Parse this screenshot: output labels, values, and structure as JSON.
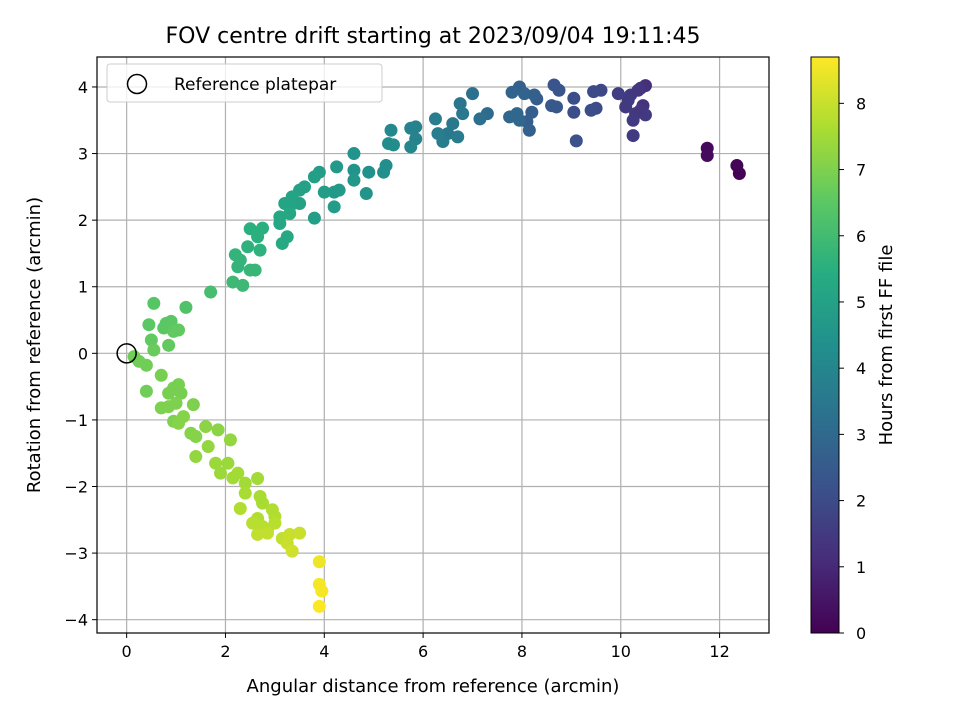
{
  "chart_data": {
    "type": "scatter",
    "title": "FOV centre drift starting at 2023/09/04 19:11:45",
    "xlabel": "Angular distance from reference (arcmin)",
    "ylabel": "Rotation from reference (arcmin)",
    "xlim": [
      -0.6,
      13.0
    ],
    "ylim": [
      -4.2,
      4.45
    ],
    "xticks": [
      0,
      2,
      4,
      6,
      8,
      10,
      12
    ],
    "yticks": [
      -4,
      -3,
      -2,
      -1,
      0,
      1,
      2,
      3,
      4
    ],
    "grid": true,
    "legend": {
      "position": "top-left",
      "label": "Reference platepar"
    },
    "colorbar": {
      "label": "Hours from first FF file",
      "range": [
        0,
        8.7
      ],
      "ticks": [
        0,
        1,
        2,
        3,
        4,
        5,
        6,
        7,
        8
      ],
      "colormap": "viridis"
    },
    "reference_point": {
      "x": 0,
      "y": 0
    },
    "points": [
      {
        "x": 12.4,
        "y": 2.7,
        "h": 0.05
      },
      {
        "x": 12.35,
        "y": 2.82,
        "h": 0.1
      },
      {
        "x": 11.75,
        "y": 3.08,
        "h": 0.2
      },
      {
        "x": 11.75,
        "y": 2.97,
        "h": 0.25
      },
      {
        "x": 10.5,
        "y": 4.02,
        "h": 1.2
      },
      {
        "x": 10.4,
        "y": 3.98,
        "h": 1.3
      },
      {
        "x": 10.45,
        "y": 3.72,
        "h": 1.3
      },
      {
        "x": 10.3,
        "y": 3.6,
        "h": 1.4
      },
      {
        "x": 10.2,
        "y": 3.88,
        "h": 1.5
      },
      {
        "x": 10.1,
        "y": 3.7,
        "h": 1.5
      },
      {
        "x": 10.25,
        "y": 3.5,
        "h": 1.5
      },
      {
        "x": 10.5,
        "y": 3.58,
        "h": 1.5
      },
      {
        "x": 10.25,
        "y": 3.27,
        "h": 1.5
      },
      {
        "x": 10.35,
        "y": 3.95,
        "h": 1.4
      },
      {
        "x": 10.15,
        "y": 3.8,
        "h": 1.5
      },
      {
        "x": 9.95,
        "y": 3.9,
        "h": 1.6
      },
      {
        "x": 10.4,
        "y": 3.65,
        "h": 1.4
      },
      {
        "x": 9.6,
        "y": 3.95,
        "h": 1.9
      },
      {
        "x": 9.45,
        "y": 3.93,
        "h": 2.0
      },
      {
        "x": 9.5,
        "y": 3.68,
        "h": 2.0
      },
      {
        "x": 9.4,
        "y": 3.65,
        "h": 2.1
      },
      {
        "x": 9.05,
        "y": 3.83,
        "h": 2.1
      },
      {
        "x": 9.05,
        "y": 3.62,
        "h": 2.1
      },
      {
        "x": 9.1,
        "y": 3.19,
        "h": 2.2
      },
      {
        "x": 8.65,
        "y": 4.03,
        "h": 2.3
      },
      {
        "x": 8.75,
        "y": 3.95,
        "h": 2.3
      },
      {
        "x": 8.6,
        "y": 3.72,
        "h": 2.4
      },
      {
        "x": 8.7,
        "y": 3.7,
        "h": 2.4
      },
      {
        "x": 8.3,
        "y": 3.82,
        "h": 2.5
      },
      {
        "x": 8.2,
        "y": 3.62,
        "h": 2.6
      },
      {
        "x": 8.1,
        "y": 3.48,
        "h": 2.6
      },
      {
        "x": 8.15,
        "y": 3.35,
        "h": 2.7
      },
      {
        "x": 7.95,
        "y": 4.0,
        "h": 2.7
      },
      {
        "x": 7.8,
        "y": 3.92,
        "h": 2.8
      },
      {
        "x": 8.05,
        "y": 3.9,
        "h": 2.8
      },
      {
        "x": 8.25,
        "y": 3.88,
        "h": 2.7
      },
      {
        "x": 7.9,
        "y": 3.6,
        "h": 2.9
      },
      {
        "x": 7.75,
        "y": 3.55,
        "h": 2.9
      },
      {
        "x": 7.95,
        "y": 3.5,
        "h": 2.9
      },
      {
        "x": 7.3,
        "y": 3.6,
        "h": 3.1
      },
      {
        "x": 7.15,
        "y": 3.52,
        "h": 3.2
      },
      {
        "x": 7.0,
        "y": 3.9,
        "h": 3.2
      },
      {
        "x": 6.75,
        "y": 3.75,
        "h": 3.4
      },
      {
        "x": 6.8,
        "y": 3.6,
        "h": 3.5
      },
      {
        "x": 6.6,
        "y": 3.45,
        "h": 3.5
      },
      {
        "x": 6.5,
        "y": 3.3,
        "h": 3.5
      },
      {
        "x": 6.7,
        "y": 3.25,
        "h": 3.6
      },
      {
        "x": 6.4,
        "y": 3.18,
        "h": 3.6
      },
      {
        "x": 6.3,
        "y": 3.3,
        "h": 3.7
      },
      {
        "x": 6.25,
        "y": 3.52,
        "h": 3.7
      },
      {
        "x": 5.85,
        "y": 3.4,
        "h": 3.9
      },
      {
        "x": 5.75,
        "y": 3.38,
        "h": 3.9
      },
      {
        "x": 5.85,
        "y": 3.22,
        "h": 3.9
      },
      {
        "x": 5.75,
        "y": 3.1,
        "h": 4.0
      },
      {
        "x": 5.35,
        "y": 3.35,
        "h": 4.1
      },
      {
        "x": 5.3,
        "y": 3.15,
        "h": 4.2
      },
      {
        "x": 5.4,
        "y": 3.13,
        "h": 4.2
      },
      {
        "x": 5.25,
        "y": 2.82,
        "h": 4.3
      },
      {
        "x": 5.2,
        "y": 2.72,
        "h": 4.3
      },
      {
        "x": 4.9,
        "y": 2.72,
        "h": 4.4
      },
      {
        "x": 4.85,
        "y": 2.4,
        "h": 4.5
      },
      {
        "x": 4.6,
        "y": 3.0,
        "h": 4.5
      },
      {
        "x": 4.6,
        "y": 2.75,
        "h": 4.5
      },
      {
        "x": 4.6,
        "y": 2.6,
        "h": 4.6
      },
      {
        "x": 4.25,
        "y": 2.8,
        "h": 4.7
      },
      {
        "x": 4.2,
        "y": 2.42,
        "h": 4.7
      },
      {
        "x": 4.3,
        "y": 2.45,
        "h": 4.7
      },
      {
        "x": 4.2,
        "y": 2.2,
        "h": 4.8
      },
      {
        "x": 4.0,
        "y": 2.42,
        "h": 4.8
      },
      {
        "x": 3.9,
        "y": 2.72,
        "h": 4.8
      },
      {
        "x": 3.8,
        "y": 2.65,
        "h": 4.9
      },
      {
        "x": 3.8,
        "y": 2.03,
        "h": 4.9
      },
      {
        "x": 3.6,
        "y": 2.5,
        "h": 5.0
      },
      {
        "x": 3.5,
        "y": 2.45,
        "h": 5.0
      },
      {
        "x": 3.5,
        "y": 2.25,
        "h": 5.0
      },
      {
        "x": 3.35,
        "y": 2.35,
        "h": 5.1
      },
      {
        "x": 3.3,
        "y": 2.2,
        "h": 5.1
      },
      {
        "x": 3.2,
        "y": 2.25,
        "h": 5.1
      },
      {
        "x": 3.3,
        "y": 2.1,
        "h": 5.2
      },
      {
        "x": 3.1,
        "y": 2.05,
        "h": 5.2
      },
      {
        "x": 3.1,
        "y": 1.95,
        "h": 5.2
      },
      {
        "x": 3.25,
        "y": 1.75,
        "h": 5.3
      },
      {
        "x": 3.15,
        "y": 1.65,
        "h": 5.3
      },
      {
        "x": 2.75,
        "y": 1.88,
        "h": 5.5
      },
      {
        "x": 2.5,
        "y": 1.87,
        "h": 5.5
      },
      {
        "x": 2.65,
        "y": 1.75,
        "h": 5.5
      },
      {
        "x": 2.45,
        "y": 1.6,
        "h": 5.6
      },
      {
        "x": 2.7,
        "y": 1.55,
        "h": 5.6
      },
      {
        "x": 2.2,
        "y": 1.48,
        "h": 5.7
      },
      {
        "x": 2.25,
        "y": 1.3,
        "h": 5.7
      },
      {
        "x": 2.5,
        "y": 1.25,
        "h": 5.8
      },
      {
        "x": 2.6,
        "y": 1.25,
        "h": 5.8
      },
      {
        "x": 2.3,
        "y": 1.4,
        "h": 5.7
      },
      {
        "x": 2.15,
        "y": 1.07,
        "h": 5.9
      },
      {
        "x": 2.35,
        "y": 1.02,
        "h": 5.9
      },
      {
        "x": 1.7,
        "y": 0.92,
        "h": 6.1
      },
      {
        "x": 1.2,
        "y": 0.69,
        "h": 6.3
      },
      {
        "x": 0.55,
        "y": 0.75,
        "h": 6.4
      },
      {
        "x": 0.45,
        "y": 0.43,
        "h": 6.5
      },
      {
        "x": 0.8,
        "y": 0.45,
        "h": 6.5
      },
      {
        "x": 0.9,
        "y": 0.48,
        "h": 6.5
      },
      {
        "x": 0.75,
        "y": 0.38,
        "h": 6.5
      },
      {
        "x": 0.95,
        "y": 0.33,
        "h": 6.6
      },
      {
        "x": 1.05,
        "y": 0.35,
        "h": 6.6
      },
      {
        "x": 0.5,
        "y": 0.2,
        "h": 6.6
      },
      {
        "x": 0.85,
        "y": 0.12,
        "h": 6.6
      },
      {
        "x": 0.55,
        "y": 0.05,
        "h": 6.7
      },
      {
        "x": 0.15,
        "y": -0.05,
        "h": 6.8
      },
      {
        "x": 0.25,
        "y": -0.12,
        "h": 6.8
      },
      {
        "x": 0.4,
        "y": -0.18,
        "h": 6.8
      },
      {
        "x": 0.4,
        "y": -0.57,
        "h": 6.8
      },
      {
        "x": 0.7,
        "y": -0.33,
        "h": 6.9
      },
      {
        "x": 1.05,
        "y": -0.47,
        "h": 6.9
      },
      {
        "x": 0.95,
        "y": -0.52,
        "h": 6.9
      },
      {
        "x": 0.85,
        "y": -0.6,
        "h": 6.9
      },
      {
        "x": 1.1,
        "y": -0.6,
        "h": 6.9
      },
      {
        "x": 0.7,
        "y": -0.82,
        "h": 7.0
      },
      {
        "x": 0.85,
        "y": -0.8,
        "h": 7.0
      },
      {
        "x": 1.0,
        "y": -0.75,
        "h": 7.0
      },
      {
        "x": 1.35,
        "y": -0.77,
        "h": 7.0
      },
      {
        "x": 0.95,
        "y": -1.02,
        "h": 7.0
      },
      {
        "x": 1.15,
        "y": -0.95,
        "h": 7.1
      },
      {
        "x": 1.05,
        "y": -1.05,
        "h": 7.1
      },
      {
        "x": 1.3,
        "y": -1.2,
        "h": 7.1
      },
      {
        "x": 1.4,
        "y": -1.25,
        "h": 7.1
      },
      {
        "x": 1.6,
        "y": -1.1,
        "h": 7.2
      },
      {
        "x": 1.85,
        "y": -1.15,
        "h": 7.2
      },
      {
        "x": 2.1,
        "y": -1.3,
        "h": 7.3
      },
      {
        "x": 1.65,
        "y": -1.4,
        "h": 7.3
      },
      {
        "x": 1.4,
        "y": -1.55,
        "h": 7.3
      },
      {
        "x": 1.8,
        "y": -1.65,
        "h": 7.4
      },
      {
        "x": 1.9,
        "y": -1.8,
        "h": 7.4
      },
      {
        "x": 2.05,
        "y": -1.65,
        "h": 7.4
      },
      {
        "x": 2.25,
        "y": -1.8,
        "h": 7.5
      },
      {
        "x": 2.15,
        "y": -1.87,
        "h": 7.5
      },
      {
        "x": 2.4,
        "y": -1.95,
        "h": 7.5
      },
      {
        "x": 2.65,
        "y": -1.88,
        "h": 7.5
      },
      {
        "x": 2.4,
        "y": -2.1,
        "h": 7.6
      },
      {
        "x": 2.7,
        "y": -2.15,
        "h": 7.6
      },
      {
        "x": 2.75,
        "y": -2.25,
        "h": 7.6
      },
      {
        "x": 2.3,
        "y": -2.33,
        "h": 7.7
      },
      {
        "x": 2.95,
        "y": -2.35,
        "h": 7.7
      },
      {
        "x": 3.0,
        "y": -2.45,
        "h": 7.7
      },
      {
        "x": 2.65,
        "y": -2.48,
        "h": 7.7
      },
      {
        "x": 2.55,
        "y": -2.55,
        "h": 7.8
      },
      {
        "x": 2.75,
        "y": -2.6,
        "h": 7.8
      },
      {
        "x": 2.85,
        "y": -2.65,
        "h": 7.8
      },
      {
        "x": 3.0,
        "y": -2.55,
        "h": 7.8
      },
      {
        "x": 2.65,
        "y": -2.72,
        "h": 7.9
      },
      {
        "x": 2.85,
        "y": -2.7,
        "h": 7.9
      },
      {
        "x": 3.15,
        "y": -2.78,
        "h": 7.9
      },
      {
        "x": 3.3,
        "y": -2.72,
        "h": 8.0
      },
      {
        "x": 3.5,
        "y": -2.7,
        "h": 8.0
      },
      {
        "x": 3.25,
        "y": -2.85,
        "h": 8.0
      },
      {
        "x": 3.35,
        "y": -2.97,
        "h": 8.1
      },
      {
        "x": 3.9,
        "y": -3.13,
        "h": 8.5
      },
      {
        "x": 3.9,
        "y": -3.47,
        "h": 8.6
      },
      {
        "x": 3.95,
        "y": -3.57,
        "h": 8.6
      },
      {
        "x": 3.9,
        "y": -3.8,
        "h": 8.7
      }
    ]
  }
}
